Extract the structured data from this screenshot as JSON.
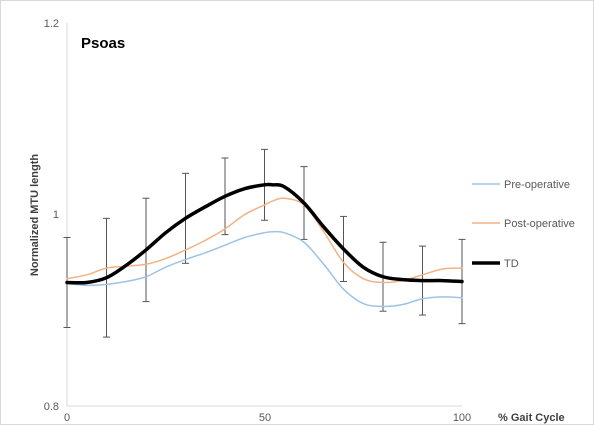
{
  "chart_data": {
    "type": "line",
    "title": "Psoas",
    "xlabel": "% Gait Cycle",
    "ylabel": "Normalized MTU length",
    "xlim": [
      0,
      100
    ],
    "ylim": [
      0.8,
      1.2
    ],
    "x_ticks": [
      "0",
      "50",
      "100"
    ],
    "y_ticks": [
      "0.8",
      "1",
      "1.2"
    ],
    "grid": false,
    "legend_position": "right",
    "x": [
      0,
      5,
      10,
      15,
      20,
      25,
      30,
      35,
      40,
      45,
      50,
      52,
      55,
      60,
      65,
      70,
      75,
      80,
      85,
      90,
      95,
      100
    ],
    "series": [
      {
        "name": "Pre-operative",
        "color": "#9dc3e6",
        "width": 1.5,
        "values": [
          0.928,
          0.926,
          0.927,
          0.93,
          0.935,
          0.945,
          0.953,
          0.96,
          0.968,
          0.976,
          0.981,
          0.982,
          0.981,
          0.971,
          0.948,
          0.922,
          0.907,
          0.904,
          0.906,
          0.912,
          0.914,
          0.913
        ]
      },
      {
        "name": "Post-operative",
        "color": "#f4b183",
        "width": 1.5,
        "values": [
          0.933,
          0.937,
          0.944,
          0.946,
          0.948,
          0.954,
          0.963,
          0.973,
          0.985,
          1.0,
          1.01,
          1.014,
          1.017,
          1.01,
          0.982,
          0.95,
          0.933,
          0.929,
          0.931,
          0.937,
          0.943,
          0.944
        ]
      },
      {
        "name": "TD",
        "color": "#000000",
        "width": 3.5,
        "values": [
          0.929,
          0.929,
          0.934,
          0.947,
          0.963,
          0.981,
          0.996,
          1.008,
          1.019,
          1.027,
          1.031,
          1.031,
          1.029,
          1.012,
          0.987,
          0.964,
          0.945,
          0.935,
          0.932,
          0.931,
          0.931,
          0.93
        ]
      }
    ],
    "error_bars": {
      "x": [
        0,
        10,
        20,
        30,
        40,
        50,
        60,
        70,
        80,
        90,
        100
      ],
      "center": [
        0.929,
        0.934,
        0.963,
        0.996,
        1.019,
        1.031,
        1.012,
        0.964,
        0.935,
        0.931,
        0.93
      ],
      "err": [
        0.047,
        0.062,
        0.054,
        0.047,
        0.04,
        0.037,
        0.038,
        0.034,
        0.036,
        0.036,
        0.044
      ]
    }
  }
}
